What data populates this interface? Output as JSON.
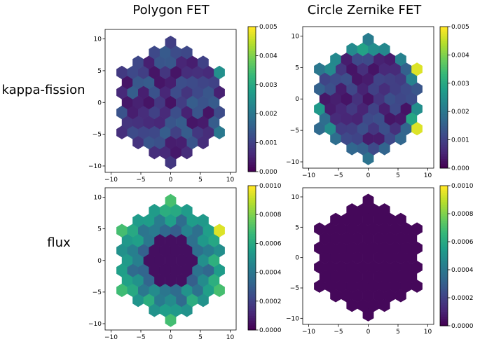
{
  "column_titles": [
    "Polygon FET",
    "Circle Zernike FET"
  ],
  "row_titles": [
    "kappa-fission",
    "flux"
  ],
  "chart_data": [
    {
      "type": "heatmap",
      "subtype": "hexbin",
      "row": "kappa-fission",
      "column": "Polygon FET",
      "colorbar_ticks": [
        "0.000",
        "0.001",
        "0.002",
        "0.003",
        "0.004",
        "0.005"
      ],
      "vmin": 0,
      "vmax": 0.005,
      "xlim": [
        -11,
        11
      ],
      "ylim": [
        -11,
        11.5
      ],
      "x_ticks": [
        -10,
        -5,
        0,
        5,
        10
      ],
      "y_ticks": [
        -10,
        -5,
        0,
        5,
        10
      ],
      "pattern": "mostly_low_uniform"
    },
    {
      "type": "heatmap",
      "subtype": "hexbin",
      "row": "kappa-fission",
      "column": "Circle Zernike FET",
      "colorbar_ticks": [
        "0.000",
        "0.001",
        "0.002",
        "0.003",
        "0.004",
        "0.005"
      ],
      "vmin": 0,
      "vmax": 0.005,
      "xlim": [
        -11,
        11
      ],
      "ylim": [
        -11,
        11.5
      ],
      "x_ticks": [
        -10,
        -5,
        0,
        5,
        10
      ],
      "y_ticks": [
        -10,
        -5,
        0,
        5,
        10
      ],
      "pattern": "hot_edges"
    },
    {
      "type": "heatmap",
      "subtype": "hexbin",
      "row": "flux",
      "column": "Polygon FET",
      "colorbar_ticks": [
        "0.0000",
        "0.0002",
        "0.0004",
        "0.0006",
        "0.0008",
        "0.0010"
      ],
      "vmin": 0,
      "vmax": 0.001,
      "xlim": [
        -11,
        11
      ],
      "ylim": [
        -11,
        11.5
      ],
      "x_ticks": [
        -10,
        -5,
        0,
        5,
        10
      ],
      "y_ticks": [
        -10,
        -5,
        0,
        5,
        10
      ],
      "pattern": "radial_spokes"
    },
    {
      "type": "heatmap",
      "subtype": "hexbin",
      "row": "flux",
      "column": "Circle Zernike FET",
      "colorbar_ticks": [
        "0.0000",
        "0.0002",
        "0.0004",
        "0.0006",
        "0.0008",
        "0.0010"
      ],
      "vmin": 0,
      "vmax": 0.001,
      "xlim": [
        -11,
        11
      ],
      "ylim": [
        -11,
        11.5
      ],
      "x_ticks": [
        -10,
        -5,
        0,
        5,
        10
      ],
      "y_ticks": [
        -10,
        -5,
        0,
        5,
        10
      ],
      "pattern": "uniform_zero"
    }
  ]
}
